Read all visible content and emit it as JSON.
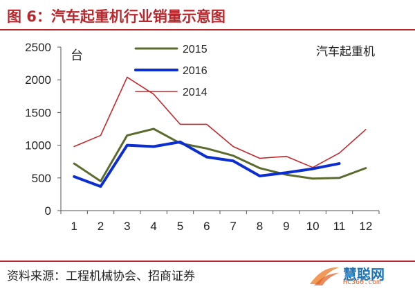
{
  "header": {
    "title": "图 6：汽车起重机行业销量示意图"
  },
  "footer": {
    "source": "资料来源：工程机械协会、招商证券",
    "watermark_main": "慧聪网",
    "watermark_sub": "HC360.com"
  },
  "chart_data": {
    "type": "line",
    "title": "汽车起重机",
    "ylabel": "台",
    "xlabel": "",
    "x": [
      "1",
      "2",
      "3",
      "4",
      "5",
      "6",
      "7",
      "8",
      "9",
      "10",
      "11",
      "12"
    ],
    "ylim": [
      0,
      2500
    ],
    "yticks": [
      0,
      500,
      1000,
      1500,
      2000,
      2500
    ],
    "legend_position": "top-center",
    "series": [
      {
        "name": "2015",
        "color": "#5b6b2e",
        "width": 3,
        "values": [
          720,
          450,
          1150,
          1250,
          1030,
          950,
          840,
          650,
          550,
          490,
          500,
          650
        ]
      },
      {
        "name": "2016",
        "color": "#0b2ed1",
        "width": 4,
        "values": [
          520,
          370,
          1000,
          980,
          1050,
          820,
          760,
          530,
          580,
          640,
          720,
          null
        ]
      },
      {
        "name": "2014",
        "color": "#c0282d",
        "width": 1.6,
        "values": [
          980,
          1150,
          2040,
          1780,
          1320,
          1320,
          980,
          800,
          830,
          660,
          880,
          1240
        ]
      }
    ]
  }
}
